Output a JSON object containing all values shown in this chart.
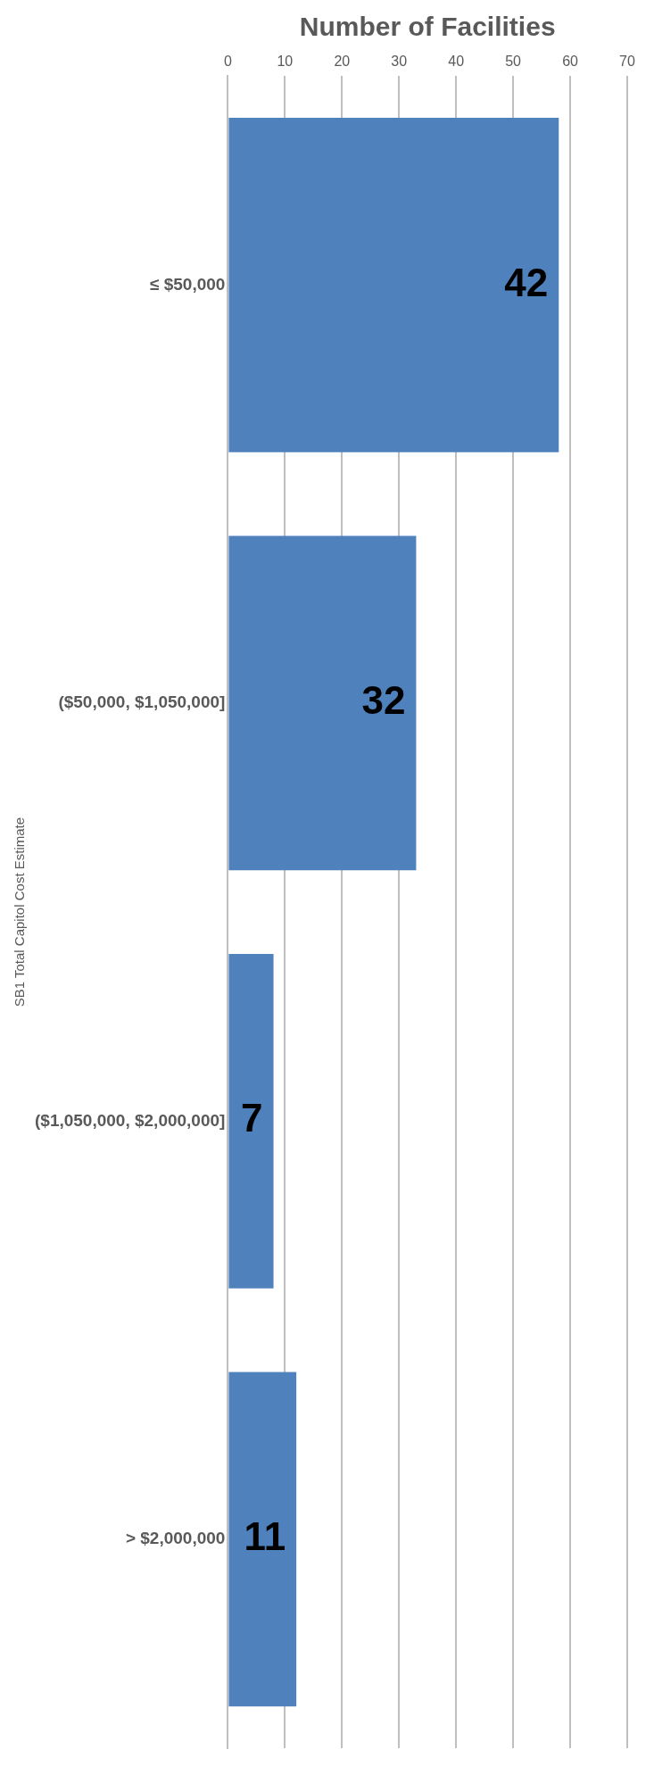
{
  "chart_data": {
    "type": "bar",
    "orientation": "horizontal",
    "xlabel": "Number of Facilities",
    "ylabel": "SB1 Total Capitol Cost Estimate",
    "categories": [
      "≤ $50,000",
      "($50,000, $1,050,000]",
      "($1,050,000, $2,000,000]",
      "> $2,000,000"
    ],
    "values": [
      58,
      33,
      8,
      12
    ],
    "annotations": [
      "42",
      "32",
      "7",
      "11"
    ],
    "color": "#4f81bd",
    "xlim": [
      0,
      70
    ],
    "xticks": [
      0,
      10,
      20,
      30,
      40,
      50,
      60,
      70
    ],
    "grid": "x",
    "legend": false
  }
}
